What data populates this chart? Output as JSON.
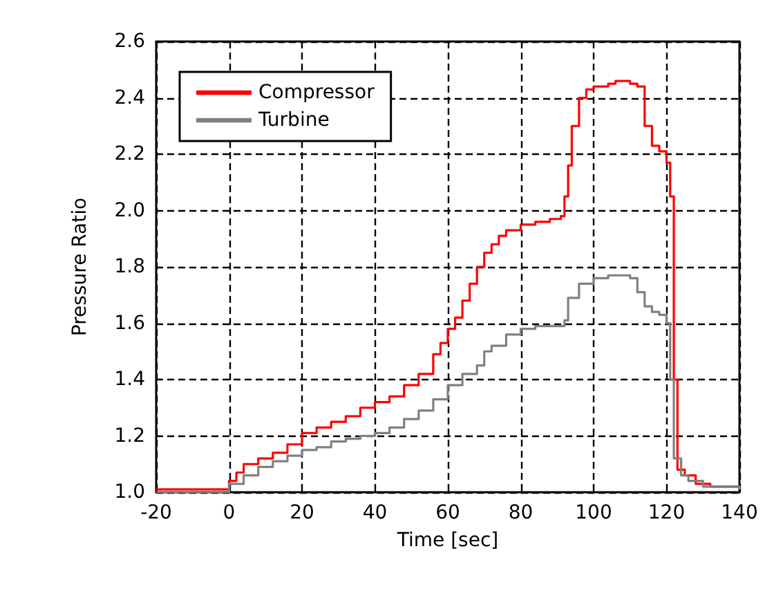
{
  "chart_data": {
    "type": "step",
    "xlabel": "Time [sec]",
    "ylabel": "Pressure Ratio",
    "xlim": [
      -20,
      140
    ],
    "xticks": [
      -20,
      0,
      20,
      40,
      60,
      80,
      100,
      120,
      140
    ],
    "ylim": [
      1.0,
      2.6
    ],
    "yticks": [
      {
        "value": 1,
        "label": "1.0"
      },
      1.2,
      1.4,
      1.6,
      1.8,
      {
        "value": 2,
        "label": "2.0"
      },
      2.2,
      2.4,
      2.6
    ],
    "grid": true,
    "legend": "top left",
    "marker": "none",
    "line_style": "solid",
    "series": [
      {
        "name": "Compressor",
        "color": "#ff0000",
        "x": [
          -20,
          -10,
          -2,
          0,
          2,
          4,
          8,
          12,
          16,
          20,
          24,
          28,
          32,
          36,
          40,
          44,
          48,
          52,
          56,
          58,
          60,
          62,
          64,
          66,
          68,
          70,
          72,
          74,
          76,
          80,
          84,
          88,
          91,
          92,
          93,
          94,
          96,
          98,
          100,
          104,
          106,
          110,
          112,
          114,
          116,
          118,
          120,
          121,
          122,
          123,
          125,
          128,
          132,
          140
        ],
        "values": [
          1.01,
          1.01,
          1.01,
          1.04,
          1.07,
          1.1,
          1.12,
          1.14,
          1.17,
          1.21,
          1.23,
          1.25,
          1.27,
          1.3,
          1.32,
          1.34,
          1.38,
          1.42,
          1.49,
          1.53,
          1.58,
          1.62,
          1.68,
          1.74,
          1.8,
          1.85,
          1.88,
          1.91,
          1.93,
          1.95,
          1.96,
          1.97,
          1.98,
          2.05,
          2.16,
          2.3,
          2.4,
          2.43,
          2.44,
          2.45,
          2.46,
          2.45,
          2.44,
          2.3,
          2.23,
          2.21,
          2.17,
          2.05,
          1.4,
          1.08,
          1.06,
          1.03,
          1.02,
          1.01
        ]
      },
      {
        "name": "Turbine",
        "color": "#808080",
        "x": [
          -20,
          -2,
          0,
          4,
          8,
          12,
          16,
          20,
          24,
          28,
          32,
          36,
          40,
          44,
          48,
          52,
          56,
          60,
          64,
          68,
          70,
          72,
          76,
          80,
          84,
          88,
          92,
          93,
          96,
          100,
          104,
          108,
          110,
          112,
          114,
          116,
          118,
          120,
          121,
          122,
          124,
          126,
          130,
          140
        ],
        "values": [
          1.0,
          1.0,
          1.03,
          1.06,
          1.09,
          1.11,
          1.13,
          1.15,
          1.16,
          1.18,
          1.19,
          1.2,
          1.21,
          1.23,
          1.26,
          1.29,
          1.33,
          1.38,
          1.42,
          1.45,
          1.5,
          1.52,
          1.56,
          1.58,
          1.59,
          1.59,
          1.61,
          1.69,
          1.74,
          1.76,
          1.77,
          1.77,
          1.76,
          1.71,
          1.66,
          1.64,
          1.63,
          1.6,
          1.4,
          1.12,
          1.06,
          1.04,
          1.02,
          1.01
        ]
      }
    ]
  }
}
